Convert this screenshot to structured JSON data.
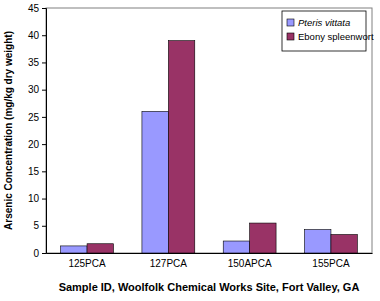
{
  "chart_data": {
    "type": "bar",
    "x_label": "Sample ID, Woolfolk Chemical Works Site, Fort Valley, GA",
    "y_label": "Arsenic Concentration (mg/kg dry weight)",
    "categories": [
      "125PCA",
      "127PCA",
      "150APCA",
      "155PCA"
    ],
    "series": [
      {
        "name": "Pteris vittata",
        "color": "#9999ff",
        "values": [
          1.3,
          26,
          2.2,
          4.3
        ]
      },
      {
        "name": "Ebony spleenwort",
        "color": "#993366",
        "values": [
          1.7,
          39,
          5.5,
          3.4
        ]
      }
    ],
    "ylim": [
      0,
      45
    ],
    "yticks": [
      0,
      5,
      10,
      15,
      20,
      25,
      30,
      35,
      40,
      45
    ],
    "grid": false,
    "legend": "upper right"
  }
}
